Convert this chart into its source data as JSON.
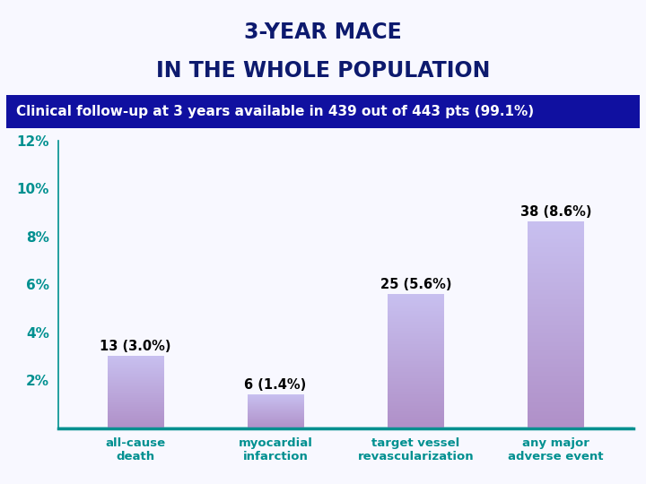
{
  "title_line1": "3-YEAR MACE",
  "title_line2": "IN THE WHOLE POPULATION",
  "subtitle": "Clinical follow-up at 3 years available in 439 out of 443 pts (99.1%)",
  "categories": [
    "all-cause\ndeath",
    "myocardial\ninfarction",
    "target vessel\nrevascularization",
    "any major\nadverse event"
  ],
  "values": [
    3.0,
    1.4,
    5.6,
    8.6
  ],
  "labels": [
    "13 (3.0%)",
    "6 (1.4%)",
    "25 (5.6%)",
    "38 (8.6%)"
  ],
  "bar_color_top": "#c8c0f0",
  "bar_color_bottom": "#b090c8",
  "background_color": "#f8f8ff",
  "title_color": "#0d1a6e",
  "subtitle_bg": "#1010a0",
  "subtitle_text_color": "#ffffff",
  "axis_color": "#009090",
  "tick_label_color": "#009090",
  "x_label_color": "#009090",
  "label_color": "#000000",
  "ylim": [
    0,
    12
  ],
  "yticks": [
    2,
    4,
    6,
    8,
    10,
    12
  ],
  "ytick_labels": [
    "2%",
    "4%",
    "6%",
    "8%",
    "10%",
    "12%"
  ],
  "title_fontsize": 17,
  "subtitle_fontsize": 11,
  "bar_width": 0.4
}
